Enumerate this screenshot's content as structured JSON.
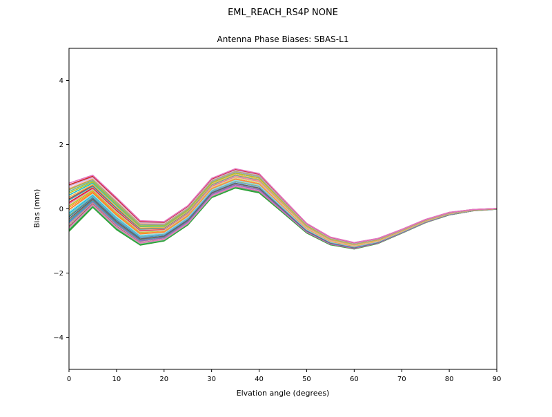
{
  "figure": {
    "title": "EML_REACH_RS4P  NONE",
    "subtitle": "Antenna Phase Biases: SBAS-L1"
  },
  "chart_data": {
    "type": "line",
    "title": "EML_REACH_RS4P  NONE",
    "subtitle": "Antenna Phase Biases: SBAS-L1",
    "xlabel": "Elvation angle (degrees)",
    "ylabel": "Bias (mm)",
    "xlim": [
      0,
      90
    ],
    "ylim": [
      -5,
      5
    ],
    "xticks": [
      0,
      10,
      20,
      30,
      40,
      50,
      60,
      70,
      80,
      90
    ],
    "yticks": [
      -4,
      -2,
      0,
      2,
      4
    ],
    "grid": false,
    "legend": "none",
    "x": [
      0,
      5,
      10,
      15,
      20,
      25,
      30,
      35,
      40,
      45,
      50,
      55,
      60,
      65,
      70,
      75,
      80,
      85,
      90
    ],
    "mean": [
      0.05,
      0.55,
      -0.15,
      -0.75,
      -0.7,
      -0.2,
      0.65,
      0.95,
      0.8,
      0.1,
      -0.6,
      -1.0,
      -1.15,
      -1.0,
      -0.7,
      -0.38,
      -0.15,
      -0.04,
      0.0
    ],
    "spread": [
      0.75,
      0.5,
      0.5,
      0.38,
      0.3,
      0.3,
      0.3,
      0.3,
      0.3,
      0.22,
      0.15,
      0.12,
      0.1,
      0.08,
      0.06,
      0.05,
      0.04,
      0.02,
      0.01
    ],
    "series": [
      {
        "color": "#2ca02c",
        "f0": -1.0,
        "f1": -1.0
      },
      {
        "color": "#31a354",
        "f0": -0.95,
        "f1": -0.9
      },
      {
        "color": "#98df8a",
        "f0": -0.88,
        "f1": -0.8
      },
      {
        "color": "#8c564b",
        "f0": -0.8,
        "f1": -0.85
      },
      {
        "color": "#e377c2",
        "f0": -0.85,
        "f1": -0.75
      },
      {
        "color": "#c49c94",
        "f0": -0.72,
        "f1": -0.6
      },
      {
        "color": "#9467bd",
        "f0": -0.65,
        "f1": -0.7
      },
      {
        "color": "#17becf",
        "f0": -0.6,
        "f1": -0.45
      },
      {
        "color": "#7f7f7f",
        "f0": -0.55,
        "f1": -0.5
      },
      {
        "color": "#636363",
        "f0": -0.48,
        "f1": -0.55
      },
      {
        "color": "#1f77b4",
        "f0": -0.4,
        "f1": -0.3
      },
      {
        "color": "#bcbd22",
        "f0": -0.35,
        "f1": -0.2
      },
      {
        "color": "#6baed6",
        "f0": -0.32,
        "f1": -0.42
      },
      {
        "color": "#17becf",
        "f0": -0.25,
        "f1": -0.1
      },
      {
        "color": "#9edae5",
        "f0": -0.18,
        "f1": -0.25
      },
      {
        "color": "#ff7f0e",
        "f0": -0.1,
        "f1": 0.0
      },
      {
        "color": "#fd8d3c",
        "f0": -0.02,
        "f1": -0.15
      },
      {
        "color": "#bcbd22",
        "f0": 0.05,
        "f1": 0.12
      },
      {
        "color": "#dbdb8d",
        "f0": 0.12,
        "f1": 0.02
      },
      {
        "color": "#e377c2",
        "f0": 0.15,
        "f1": 0.25
      },
      {
        "color": "#d62728",
        "f0": 0.2,
        "f1": 0.3
      },
      {
        "color": "#ff9896",
        "f0": 0.28,
        "f1": 0.18
      },
      {
        "color": "#17becf",
        "f0": 0.3,
        "f1": 0.4
      },
      {
        "color": "#ad494a",
        "f0": 0.35,
        "f1": 0.45
      },
      {
        "color": "#e7ba52",
        "f0": 0.42,
        "f1": 0.35
      },
      {
        "color": "#17becf",
        "f0": 0.5,
        "f1": 0.6
      },
      {
        "color": "#bcbd22",
        "f0": 0.58,
        "f1": 0.5
      },
      {
        "color": "#74c476",
        "f0": 0.65,
        "f1": 0.72
      },
      {
        "color": "#9e9ac8",
        "f0": 0.72,
        "f1": 0.65
      },
      {
        "color": "#bcbd22",
        "f0": 0.75,
        "f1": 0.85
      },
      {
        "color": "#f7b6d2",
        "f0": 0.8,
        "f1": 0.88
      },
      {
        "color": "#c5b0d5",
        "f0": 0.88,
        "f1": 0.8
      },
      {
        "color": "#d62728",
        "f0": 0.93,
        "f1": 0.95
      },
      {
        "color": "#e377c2",
        "f0": 1.0,
        "f1": 1.0
      }
    ]
  },
  "layout": {
    "axis_color": "#000000",
    "background": "#ffffff"
  }
}
